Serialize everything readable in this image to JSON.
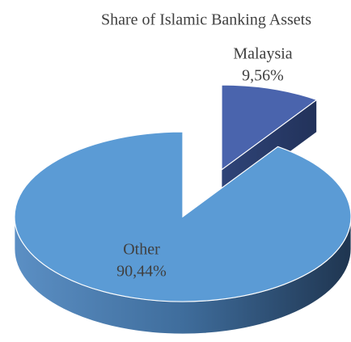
{
  "chart_data": {
    "type": "pie",
    "title": "Share of Islamic Banking Assets",
    "categories": [
      "Malaysia",
      "Other"
    ],
    "values": [
      9.56,
      90.44
    ],
    "value_labels": [
      "9,56%",
      "90,44%"
    ],
    "colors": [
      "#4a64ad",
      "#5b9bd5"
    ]
  }
}
